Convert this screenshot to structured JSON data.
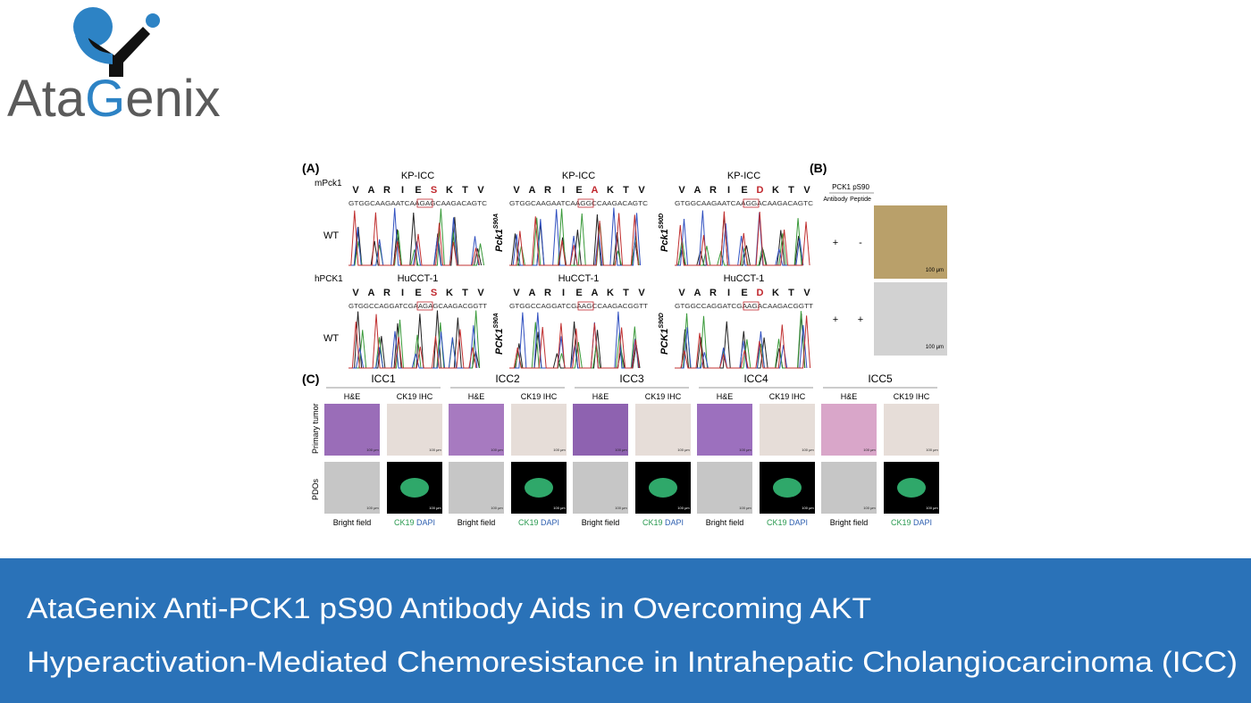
{
  "logo": {
    "parts": [
      "Ata",
      "G",
      "enix"
    ]
  },
  "figure": {
    "panel_a": {
      "label": "(A)",
      "highlight_color": "#c0272d",
      "rows": [
        {
          "species": "mPck1",
          "blocks": [
            {
              "cell": "KP-ICC",
              "genotype": {
                "base": "WT"
              },
              "protein": [
                "V",
                "A",
                "R",
                "I",
                "E",
                "S",
                "K",
                "T",
                "V"
              ],
              "highlight": 5,
              "dna": "GTGGCAAGAATCAAGAGCAAGACAGTC"
            },
            {
              "cell": "KP-ICC",
              "genotype": {
                "base": "Pck1",
                "sup": "S90A"
              },
              "protein": [
                "V",
                "A",
                "R",
                "I",
                "E",
                "A",
                "K",
                "T",
                "V"
              ],
              "highlight": 5,
              "dna": "GTGGCAAGAATCAAGGCCAAGACAGTC"
            },
            {
              "cell": "KP-ICC",
              "genotype": {
                "base": "Pck1",
                "sup": "S90D"
              },
              "protein": [
                "V",
                "A",
                "R",
                "I",
                "E",
                "D",
                "K",
                "T",
                "V"
              ],
              "highlight": 5,
              "dna": "GTGGCAAGAATCAAGGACAAGACAGTC"
            }
          ]
        },
        {
          "species": "hPCK1",
          "blocks": [
            {
              "cell": "HuCCT-1",
              "genotype": {
                "base": "WT"
              },
              "protein": [
                "V",
                "A",
                "R",
                "I",
                "E",
                "S",
                "K",
                "T",
                "V"
              ],
              "highlight": 5,
              "dna": "GTGGCCAGGATCGAAGAGCAAGACGGTT"
            },
            {
              "cell": "HuCCT-1",
              "genotype": {
                "base": "PCK1",
                "sup": "S90A"
              },
              "protein": [
                "V",
                "A",
                "R",
                "I",
                "E",
                "A",
                "K",
                "T",
                "V"
              ],
              "highlight": null,
              "dna": "GTGGCCAGGATCGAAGCCAAGACGGTT"
            },
            {
              "cell": "HuCCT-1",
              "genotype": {
                "base": "PCK1",
                "sup": "S90D"
              },
              "protein": [
                "V",
                "A",
                "R",
                "I",
                "E",
                "D",
                "K",
                "T",
                "V"
              ],
              "highlight": 5,
              "dna": "GTGGCCAGGATCGAAGACAAGACGGTT"
            }
          ]
        }
      ]
    },
    "panel_b": {
      "label": "(B)",
      "header": "PCK1 pS90",
      "columns": [
        "Antibody",
        "Peptide"
      ],
      "rows": [
        [
          "+",
          "-"
        ],
        [
          "+",
          "+"
        ]
      ],
      "scale_bar": "100 μm"
    },
    "panel_c": {
      "label": "(C)",
      "samples": [
        "ICC1",
        "ICC2",
        "ICC3",
        "ICC4",
        "ICC5"
      ],
      "stains": [
        "H&E",
        "CK19 IHC"
      ],
      "row_labels": [
        "Primary tumor",
        "PDOs"
      ],
      "bright_label": "Bright field",
      "fluor_labels": [
        "CK19",
        "DAPI"
      ],
      "scale_bar": "100 μm"
    }
  },
  "banner": {
    "lines": [
      "AtaGenix Anti-PCK1 pS90 Antibody Aids in Overcoming AKT",
      "Hyperactivation-Mediated Chemoresistance in Intrahepatic Cholangiocarcinoma (ICC)"
    ]
  }
}
